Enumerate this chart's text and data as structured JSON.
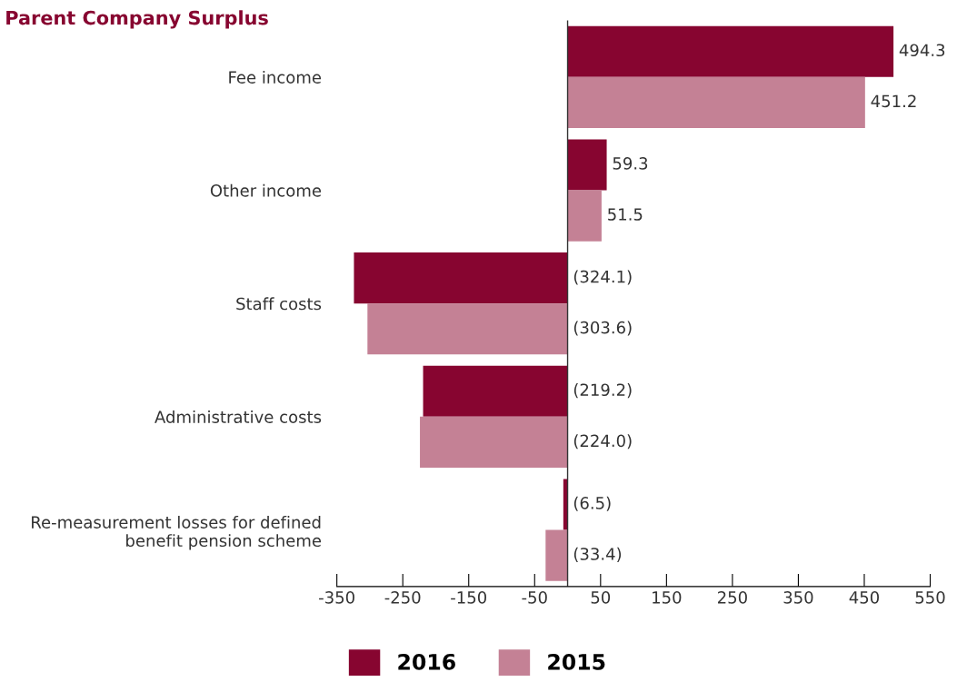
{
  "chart_data": {
    "type": "bar",
    "orientation": "horizontal",
    "title": "Parent Company Surplus",
    "categories": [
      "Fee income",
      "Other income",
      "Staff costs",
      "Administrative costs",
      "Re-measurement losses for defined\nbenefit pension scheme"
    ],
    "series": [
      {
        "name": "2016",
        "color": "#870530",
        "values": [
          494.3,
          59.3,
          -324.1,
          -219.2,
          -6.5
        ],
        "value_labels": [
          "494.3",
          "59.3",
          "(324.1)",
          "(219.2)",
          "(6.5)"
        ]
      },
      {
        "name": "2015",
        "color": "#c48195",
        "values": [
          451.2,
          51.5,
          -303.6,
          -224.0,
          -33.4
        ],
        "value_labels": [
          "451.2",
          "51.5",
          "(303.6)",
          "(224.0)",
          "(33.4)"
        ]
      }
    ],
    "xlim": [
      -350,
      550
    ],
    "xticks": [
      -350,
      -250,
      -150,
      -50,
      50,
      150,
      250,
      350,
      450,
      550
    ],
    "grid": false,
    "legend": "bottom"
  }
}
